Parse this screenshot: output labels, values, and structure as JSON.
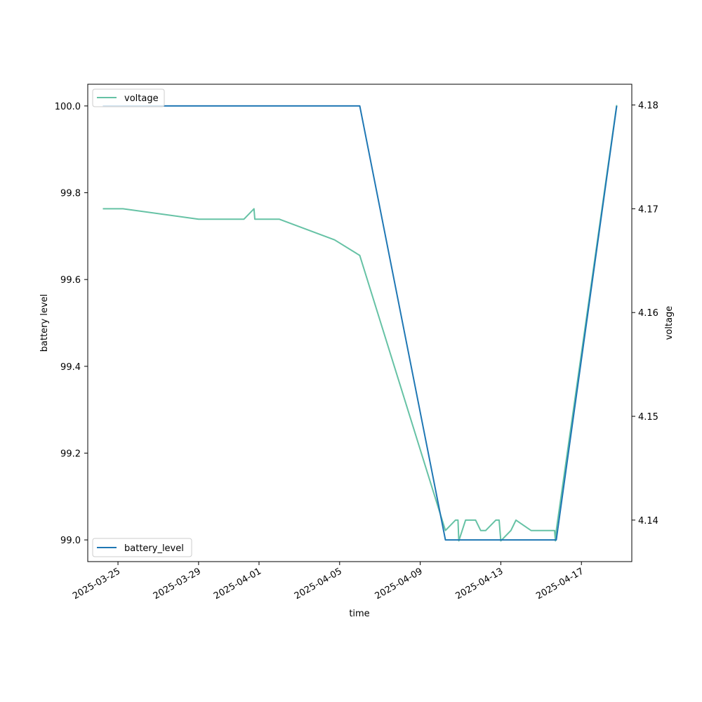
{
  "chart_data": {
    "type": "line",
    "xlabel": "time",
    "ylabel_left": "battery level",
    "ylabel_right": "voltage",
    "x_ticks": [
      "2025-03-25",
      "2025-03-29",
      "2025-04-01",
      "2025-04-05",
      "2025-04-09",
      "2025-04-13",
      "2025-04-17"
    ],
    "y_left_ticks": [
      "99.0",
      "99.2",
      "99.4",
      "99.6",
      "99.8",
      "100.0"
    ],
    "y_right_ticks": [
      "4.14",
      "4.15",
      "4.16",
      "4.17",
      "4.18"
    ],
    "xlim": [
      "2025-03-23T12:00",
      "2025-04-19T12:00"
    ],
    "ylim_left": [
      98.95,
      100.05
    ],
    "ylim_right": [
      4.136,
      4.182
    ],
    "legends": {
      "voltage": "upper-left",
      "battery_level": "lower-left"
    },
    "grid": false,
    "series": [
      {
        "name": "battery_level",
        "axis": "left",
        "color": "#1f77b4",
        "points": [
          [
            "2025-03-24T06:00",
            100.0
          ],
          [
            "2025-04-06T00:00",
            100.0
          ],
          [
            "2025-04-10T06:00",
            99.0
          ],
          [
            "2025-04-15T18:00",
            99.0
          ],
          [
            "2025-04-18T18:00",
            100.0
          ]
        ]
      },
      {
        "name": "voltage",
        "axis": "right",
        "color": "#66c2a5",
        "points": [
          [
            "2025-03-24T06:00",
            4.17
          ],
          [
            "2025-03-25T06:00",
            4.17
          ],
          [
            "2025-03-29T00:00",
            4.169
          ],
          [
            "2025-03-31T06:00",
            4.169
          ],
          [
            "2025-03-31T18:00",
            4.17
          ],
          [
            "2025-03-31T19:00",
            4.169
          ],
          [
            "2025-04-02T00:00",
            4.169
          ],
          [
            "2025-04-04T18:00",
            4.167
          ],
          [
            "2025-04-06T00:00",
            4.1655
          ],
          [
            "2025-04-10T06:00",
            4.139
          ],
          [
            "2025-04-10T18:00",
            4.14
          ],
          [
            "2025-04-10T21:00",
            4.14
          ],
          [
            "2025-04-10T22:00",
            4.138
          ],
          [
            "2025-04-11T06:00",
            4.14
          ],
          [
            "2025-04-11T18:00",
            4.14
          ],
          [
            "2025-04-12T00:00",
            4.139
          ],
          [
            "2025-04-12T06:00",
            4.139
          ],
          [
            "2025-04-12T18:00",
            4.14
          ],
          [
            "2025-04-12T22:00",
            4.14
          ],
          [
            "2025-04-13T00:00",
            4.138
          ],
          [
            "2025-04-13T12:00",
            4.139
          ],
          [
            "2025-04-13T18:00",
            4.14
          ],
          [
            "2025-04-14T12:00",
            4.139
          ],
          [
            "2025-04-15T12:00",
            4.139
          ],
          [
            "2025-04-15T16:00",
            4.139
          ],
          [
            "2025-04-15T17:00",
            4.138
          ],
          [
            "2025-04-15T18:00",
            4.139
          ],
          [
            "2025-04-18T18:00",
            4.18
          ]
        ]
      }
    ]
  }
}
